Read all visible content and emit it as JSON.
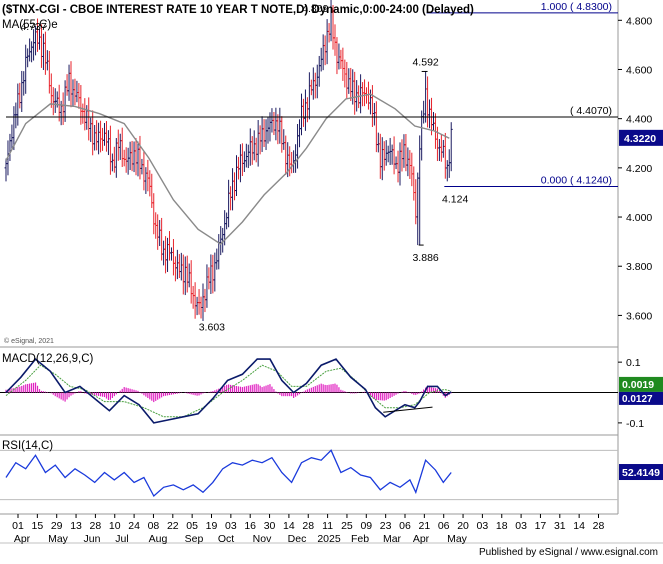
{
  "header": {
    "title": "($TNX-CGI - CBOE INTEREST RATE 10 YEAR T NOTE,D) Dynamic,0:00-24:00 (Delayed)",
    "ma_label": "MA(55,C)e"
  },
  "footer": {
    "watermark": "© eSignal, 2021",
    "published": "Published by eSignal / www.esignal.com"
  },
  "colors": {
    "up_bar": "#1a1a60",
    "down_bar": "#e8242c",
    "ma_line": "#8a8a8a",
    "fib_line": "#00008b",
    "level_line": "#000000",
    "price_box": "#0a0a8a",
    "macd_line": "#0a1a6a",
    "macd_signal": "#4aa040",
    "macd_hist": "#e020c0",
    "rsi_line": "#1a3adc",
    "value_box": "#0a0a8a"
  },
  "chart_data": [
    {
      "type": "candlestick",
      "name": "($TNX-CGI - CBOE INTEREST RATE 10 YEAR T NOTE,D) Dynamic,0:00-24:00 (Delayed)",
      "ylim": [
        3.5,
        4.85
      ],
      "y_ticks": [
        3.6,
        3.8,
        4.0,
        4.2,
        4.4,
        4.6,
        4.8
      ],
      "y_tick_labels": [
        "3.600",
        "3.800",
        "4.000",
        "4.200",
        "4.400",
        "4.600",
        "4.800"
      ],
      "x_tick_labels": [
        "01",
        "15",
        "29",
        "13",
        "28",
        "10",
        "24",
        "08",
        "22",
        "05",
        "19",
        "03",
        "16",
        "30",
        "14",
        "28",
        "11",
        "25",
        "09",
        "23",
        "06",
        "21",
        "06",
        "20",
        "03",
        "18",
        "03",
        "17",
        "31",
        "14",
        "28"
      ],
      "x_month_labels": [
        "Apr",
        "May",
        "Jun",
        "Jul",
        "Aug",
        "Sep",
        "Oct",
        "Nov",
        "Dec",
        "2025",
        "Feb",
        "Mar",
        "Apr",
        "May"
      ],
      "anchors": [
        {
          "x": 0,
          "y": 4.2
        },
        {
          "x": 6,
          "y": 4.36
        },
        {
          "x": 12,
          "y": 4.46
        },
        {
          "x": 20,
          "y": 4.62
        },
        {
          "x": 28,
          "y": 4.73
        },
        {
          "x": 38,
          "y": 4.69
        },
        {
          "x": 46,
          "y": 4.5
        },
        {
          "x": 55,
          "y": 4.43
        },
        {
          "x": 64,
          "y": 4.55
        },
        {
          "x": 74,
          "y": 4.47
        },
        {
          "x": 82,
          "y": 4.39
        },
        {
          "x": 92,
          "y": 4.31
        },
        {
          "x": 100,
          "y": 4.34
        },
        {
          "x": 108,
          "y": 4.22
        },
        {
          "x": 115,
          "y": 4.3
        },
        {
          "x": 122,
          "y": 4.22
        },
        {
          "x": 130,
          "y": 4.26
        },
        {
          "x": 138,
          "y": 4.2
        },
        {
          "x": 145,
          "y": 4.14
        },
        {
          "x": 152,
          "y": 3.95
        },
        {
          "x": 160,
          "y": 3.86
        },
        {
          "x": 168,
          "y": 3.85
        },
        {
          "x": 175,
          "y": 3.78
        },
        {
          "x": 182,
          "y": 3.78
        },
        {
          "x": 190,
          "y": 3.68
        },
        {
          "x": 197,
          "y": 3.62
        },
        {
          "x": 203,
          "y": 3.72
        },
        {
          "x": 210,
          "y": 3.78
        },
        {
          "x": 218,
          "y": 3.9
        },
        {
          "x": 226,
          "y": 4.06
        },
        {
          "x": 235,
          "y": 4.2
        },
        {
          "x": 245,
          "y": 4.26
        },
        {
          "x": 255,
          "y": 4.3
        },
        {
          "x": 265,
          "y": 4.36
        },
        {
          "x": 275,
          "y": 4.39
        },
        {
          "x": 283,
          "y": 4.27
        },
        {
          "x": 290,
          "y": 4.19
        },
        {
          "x": 300,
          "y": 4.41
        },
        {
          "x": 310,
          "y": 4.52
        },
        {
          "x": 318,
          "y": 4.6
        },
        {
          "x": 325,
          "y": 4.73
        },
        {
          "x": 330,
          "y": 4.79
        },
        {
          "x": 336,
          "y": 4.66
        },
        {
          "x": 342,
          "y": 4.6
        },
        {
          "x": 350,
          "y": 4.52
        },
        {
          "x": 358,
          "y": 4.49
        },
        {
          "x": 366,
          "y": 4.51
        },
        {
          "x": 374,
          "y": 4.4
        },
        {
          "x": 380,
          "y": 4.22
        },
        {
          "x": 388,
          "y": 4.28
        },
        {
          "x": 396,
          "y": 4.21
        },
        {
          "x": 404,
          "y": 4.26
        },
        {
          "x": 410,
          "y": 4.22
        },
        {
          "x": 416,
          "y": 4.02
        },
        {
          "x": 420,
          "y": 4.3
        },
        {
          "x": 426,
          "y": 4.5
        },
        {
          "x": 432,
          "y": 4.38
        },
        {
          "x": 438,
          "y": 4.3
        },
        {
          "x": 444,
          "y": 4.25
        },
        {
          "x": 448,
          "y": 4.2
        },
        {
          "x": 452,
          "y": 4.32
        }
      ],
      "wick_extremes": [
        {
          "x": 28,
          "y": 4.737
        },
        {
          "x": 197,
          "y": 3.603
        },
        {
          "x": 330,
          "y": 4.809
        },
        {
          "x": 426,
          "y": 4.592
        },
        {
          "x": 419,
          "y": 3.886
        }
      ],
      "ma_points": [
        {
          "x": 0,
          "y": 4.23
        },
        {
          "x": 20,
          "y": 4.38
        },
        {
          "x": 45,
          "y": 4.46
        },
        {
          "x": 70,
          "y": 4.45
        },
        {
          "x": 95,
          "y": 4.42
        },
        {
          "x": 120,
          "y": 4.38
        },
        {
          "x": 145,
          "y": 4.24
        },
        {
          "x": 170,
          "y": 4.07
        },
        {
          "x": 195,
          "y": 3.95
        },
        {
          "x": 218,
          "y": 3.89
        },
        {
          "x": 240,
          "y": 3.98
        },
        {
          "x": 262,
          "y": 4.09
        },
        {
          "x": 285,
          "y": 4.18
        },
        {
          "x": 305,
          "y": 4.28
        },
        {
          "x": 325,
          "y": 4.4
        },
        {
          "x": 345,
          "y": 4.48
        },
        {
          "x": 370,
          "y": 4.5
        },
        {
          "x": 395,
          "y": 4.44
        },
        {
          "x": 415,
          "y": 4.37
        },
        {
          "x": 435,
          "y": 4.35
        },
        {
          "x": 450,
          "y": 4.32
        }
      ],
      "horizontal_levels": [
        {
          "label": "1.000 ( 4.8300)",
          "value": 4.83,
          "kind": "fib",
          "x_start": 427
        },
        {
          "label": "( 4.4070)",
          "value": 4.407,
          "kind": "level",
          "x_start": 0
        },
        {
          "label": "0.000 ( 4.1240)",
          "value": 4.124,
          "kind": "fib",
          "x_start": 445
        }
      ],
      "annotations": [
        {
          "text": "4.737",
          "x": 28,
          "y": 4.737,
          "pos": "above"
        },
        {
          "text": "3.603",
          "x": 209,
          "y": 3.603,
          "pos": "below"
        },
        {
          "text": "4.809",
          "x": 314,
          "y": 4.809,
          "pos": "above"
        },
        {
          "text": "4.592",
          "x": 426,
          "y": 4.592,
          "pos": "above"
        },
        {
          "text": "3.886",
          "x": 426,
          "y": 3.886,
          "pos": "below"
        },
        {
          "text": "4.124",
          "x": 456,
          "y": 4.124,
          "pos": "below"
        }
      ],
      "last_value": "4.3220"
    },
    {
      "type": "line",
      "name": "MACD(12,26,9,C)",
      "ylim": [
        -0.13,
        0.14
      ],
      "y_ticks": [
        0.1,
        -0.1
      ],
      "y_tick_labels": [
        "0.1",
        "-0.1"
      ],
      "series": [
        {
          "name": "MACD",
          "role": "macd",
          "points": [
            {
              "x": 0,
              "y": 0.0
            },
            {
              "x": 15,
              "y": 0.05
            },
            {
              "x": 30,
              "y": 0.11
            },
            {
              "x": 45,
              "y": 0.07
            },
            {
              "x": 60,
              "y": 0.0
            },
            {
              "x": 75,
              "y": 0.02
            },
            {
              "x": 90,
              "y": -0.02
            },
            {
              "x": 105,
              "y": -0.06
            },
            {
              "x": 120,
              "y": -0.01
            },
            {
              "x": 135,
              "y": -0.04
            },
            {
              "x": 150,
              "y": -0.1
            },
            {
              "x": 165,
              "y": -0.09
            },
            {
              "x": 180,
              "y": -0.08
            },
            {
              "x": 195,
              "y": -0.07
            },
            {
              "x": 210,
              "y": -0.02
            },
            {
              "x": 225,
              "y": 0.04
            },
            {
              "x": 240,
              "y": 0.06
            },
            {
              "x": 255,
              "y": 0.11
            },
            {
              "x": 268,
              "y": 0.11
            },
            {
              "x": 280,
              "y": 0.04
            },
            {
              "x": 292,
              "y": 0.0
            },
            {
              "x": 305,
              "y": 0.03
            },
            {
              "x": 320,
              "y": 0.09
            },
            {
              "x": 335,
              "y": 0.11
            },
            {
              "x": 350,
              "y": 0.05
            },
            {
              "x": 365,
              "y": 0.01
            },
            {
              "x": 375,
              "y": -0.05
            },
            {
              "x": 385,
              "y": -0.08
            },
            {
              "x": 395,
              "y": -0.06
            },
            {
              "x": 405,
              "y": -0.04
            },
            {
              "x": 415,
              "y": -0.05
            },
            {
              "x": 420,
              "y": -0.03
            },
            {
              "x": 428,
              "y": 0.02
            },
            {
              "x": 438,
              "y": 0.02
            },
            {
              "x": 446,
              "y": -0.01
            },
            {
              "x": 452,
              "y": 0.002
            }
          ]
        },
        {
          "name": "Signal",
          "role": "signal",
          "points": [
            {
              "x": 0,
              "y": -0.01
            },
            {
              "x": 20,
              "y": 0.04
            },
            {
              "x": 35,
              "y": 0.09
            },
            {
              "x": 50,
              "y": 0.06
            },
            {
              "x": 65,
              "y": 0.02
            },
            {
              "x": 80,
              "y": 0.01
            },
            {
              "x": 100,
              "y": -0.03
            },
            {
              "x": 120,
              "y": -0.03
            },
            {
              "x": 140,
              "y": -0.05
            },
            {
              "x": 160,
              "y": -0.08
            },
            {
              "x": 180,
              "y": -0.08
            },
            {
              "x": 200,
              "y": -0.05
            },
            {
              "x": 220,
              "y": 0.0
            },
            {
              "x": 240,
              "y": 0.04
            },
            {
              "x": 260,
              "y": 0.09
            },
            {
              "x": 275,
              "y": 0.07
            },
            {
              "x": 290,
              "y": 0.02
            },
            {
              "x": 305,
              "y": 0.02
            },
            {
              "x": 325,
              "y": 0.07
            },
            {
              "x": 340,
              "y": 0.08
            },
            {
              "x": 355,
              "y": 0.04
            },
            {
              "x": 370,
              "y": -0.01
            },
            {
              "x": 385,
              "y": -0.05
            },
            {
              "x": 400,
              "y": -0.05
            },
            {
              "x": 415,
              "y": -0.04
            },
            {
              "x": 430,
              "y": 0.0
            },
            {
              "x": 445,
              "y": 0.01
            },
            {
              "x": 452,
              "y": 0.005
            }
          ]
        }
      ],
      "trendline": [
        {
          "x": 383,
          "y": -0.065
        },
        {
          "x": 433,
          "y": -0.048
        }
      ],
      "last_value": "0.0019",
      "last_value_2": "0.0127"
    },
    {
      "type": "line",
      "name": "RSI(14,C)",
      "ylim": [
        20,
        80
      ],
      "guide_levels": [
        70,
        30
      ],
      "series": [
        {
          "name": "RSI",
          "points": [
            {
              "x": 0,
              "y": 48
            },
            {
              "x": 10,
              "y": 60
            },
            {
              "x": 20,
              "y": 55
            },
            {
              "x": 30,
              "y": 66
            },
            {
              "x": 40,
              "y": 52
            },
            {
              "x": 50,
              "y": 58
            },
            {
              "x": 60,
              "y": 48
            },
            {
              "x": 70,
              "y": 55
            },
            {
              "x": 80,
              "y": 50
            },
            {
              "x": 90,
              "y": 44
            },
            {
              "x": 100,
              "y": 52
            },
            {
              "x": 110,
              "y": 46
            },
            {
              "x": 120,
              "y": 52
            },
            {
              "x": 130,
              "y": 44
            },
            {
              "x": 140,
              "y": 48
            },
            {
              "x": 150,
              "y": 33
            },
            {
              "x": 160,
              "y": 40
            },
            {
              "x": 170,
              "y": 42
            },
            {
              "x": 180,
              "y": 38
            },
            {
              "x": 190,
              "y": 42
            },
            {
              "x": 200,
              "y": 36
            },
            {
              "x": 210,
              "y": 44
            },
            {
              "x": 220,
              "y": 55
            },
            {
              "x": 230,
              "y": 60
            },
            {
              "x": 240,
              "y": 58
            },
            {
              "x": 250,
              "y": 62
            },
            {
              "x": 260,
              "y": 60
            },
            {
              "x": 270,
              "y": 64
            },
            {
              "x": 280,
              "y": 52
            },
            {
              "x": 290,
              "y": 44
            },
            {
              "x": 300,
              "y": 60
            },
            {
              "x": 310,
              "y": 64
            },
            {
              "x": 320,
              "y": 62
            },
            {
              "x": 330,
              "y": 70
            },
            {
              "x": 340,
              "y": 52
            },
            {
              "x": 350,
              "y": 56
            },
            {
              "x": 360,
              "y": 50
            },
            {
              "x": 370,
              "y": 48
            },
            {
              "x": 380,
              "y": 38
            },
            {
              "x": 390,
              "y": 44
            },
            {
              "x": 400,
              "y": 40
            },
            {
              "x": 410,
              "y": 46
            },
            {
              "x": 416,
              "y": 36
            },
            {
              "x": 426,
              "y": 62
            },
            {
              "x": 436,
              "y": 54
            },
            {
              "x": 444,
              "y": 44
            },
            {
              "x": 452,
              "y": 52
            }
          ]
        }
      ],
      "last_value": "52.4149"
    }
  ]
}
